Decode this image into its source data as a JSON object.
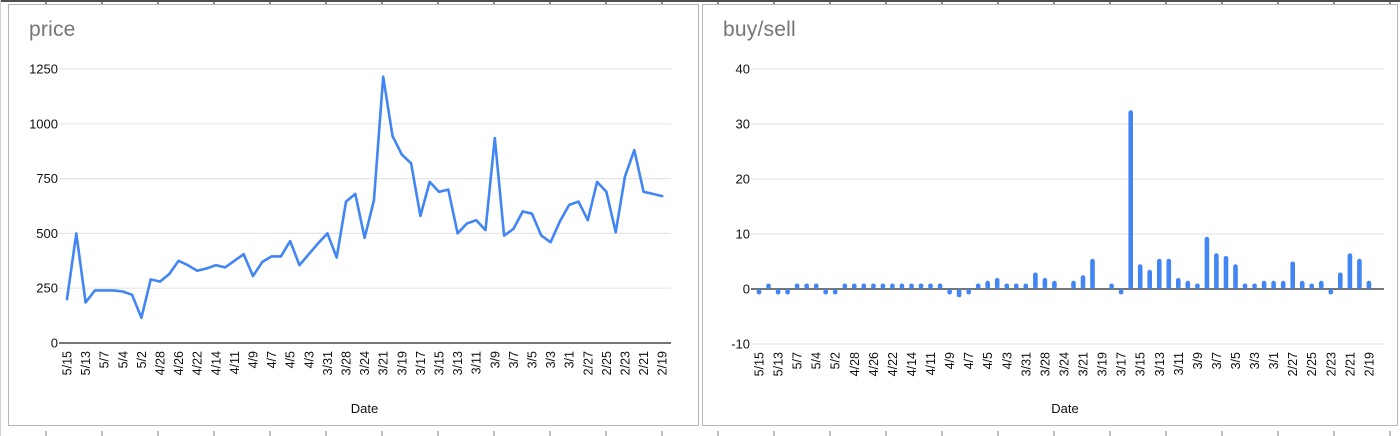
{
  "page": {
    "background": "#ffffff"
  },
  "chart_data": [
    {
      "type": "line",
      "title": "price",
      "xlabel": "Date",
      "legend": "none",
      "grid": true,
      "x_labels": [
        "5/15",
        "5/13",
        "5/7",
        "5/4",
        "5/2",
        "4/28",
        "4/26",
        "4/22",
        "4/14",
        "4/11",
        "4/9",
        "4/7",
        "4/5",
        "4/3",
        "3/31",
        "3/28",
        "3/24",
        "3/21",
        "3/19",
        "3/17",
        "3/15",
        "3/13",
        "3/11",
        "3/9",
        "3/7",
        "3/5",
        "3/3",
        "3/1",
        "2/27",
        "2/25",
        "2/23",
        "2/21",
        "2/19"
      ],
      "label_every_n_points": 2,
      "values": [
        200,
        500,
        185,
        240,
        240,
        240,
        235,
        220,
        115,
        290,
        280,
        315,
        375,
        355,
        330,
        340,
        355,
        345,
        375,
        405,
        305,
        370,
        395,
        395,
        465,
        355,
        405,
        455,
        500,
        390,
        645,
        680,
        480,
        650,
        1215,
        945,
        860,
        820,
        580,
        735,
        690,
        700,
        500,
        545,
        560,
        515,
        935,
        490,
        520,
        600,
        590,
        490,
        460,
        555,
        630,
        645,
        560,
        735,
        690,
        505,
        760,
        880,
        690,
        680,
        670
      ],
      "y_ticks": [
        0,
        250,
        500,
        750,
        1000,
        1250
      ],
      "ylim": [
        0,
        1250
      ],
      "series_color": "#4285f4",
      "colors": {
        "grid": "#e6e6e6",
        "axis": "#757575",
        "tick_text": "#111111",
        "title_text": "#757575"
      }
    },
    {
      "type": "bar",
      "title": "buy/sell",
      "xlabel": "Date",
      "legend": "none",
      "grid": true,
      "x_labels": [
        "5/15",
        "5/13",
        "5/7",
        "5/4",
        "5/2",
        "4/28",
        "4/26",
        "4/22",
        "4/14",
        "4/11",
        "4/9",
        "4/7",
        "4/5",
        "4/3",
        "3/31",
        "3/28",
        "3/24",
        "3/21",
        "3/19",
        "3/17",
        "3/15",
        "3/13",
        "3/11",
        "3/9",
        "3/7",
        "3/5",
        "3/3",
        "3/1",
        "2/27",
        "2/25",
        "2/23",
        "2/21",
        "2/19"
      ],
      "label_every_n_points": 2,
      "values": [
        -1,
        1,
        -1,
        -1,
        1,
        1,
        1,
        -1,
        -1,
        1,
        1,
        1,
        1,
        1,
        1,
        1,
        1,
        1,
        1,
        1,
        -1,
        -1.5,
        -1,
        1,
        1.5,
        2,
        1,
        1,
        1,
        3,
        2,
        1.5,
        0,
        1.5,
        2.5,
        5.5,
        0,
        1,
        -1,
        32.5,
        4.5,
        3.5,
        5.5,
        5.5,
        2,
        1.5,
        1,
        9.5,
        6.5,
        6,
        4.5,
        1,
        1,
        1.5,
        1.5,
        1.5,
        5,
        1.5,
        1,
        1.5,
        -1,
        3,
        6.5,
        5.5,
        1.5
      ],
      "y_ticks": [
        -10,
        0,
        10,
        20,
        30,
        40
      ],
      "ylim": [
        -10,
        40
      ],
      "series_color": "#4285f4",
      "colors": {
        "grid": "#e6e6e6",
        "axis": "#757575",
        "tick_text": "#111111",
        "title_text": "#757575"
      }
    }
  ]
}
